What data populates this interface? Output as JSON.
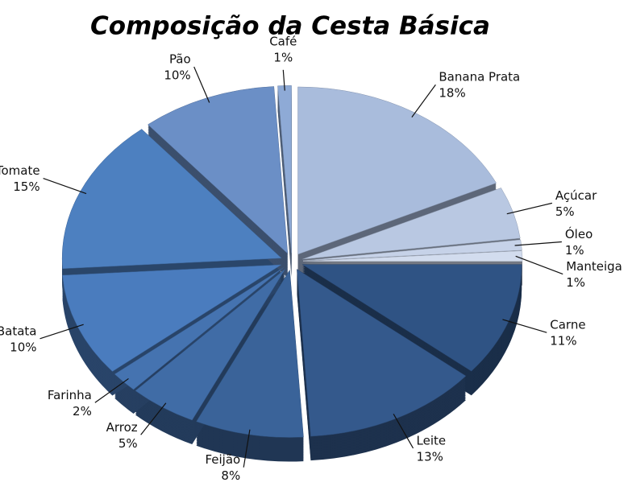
{
  "chart_data": {
    "type": "pie",
    "title": "Composição da Cesta Básica",
    "categories": [
      "Banana Prata",
      "Açúcar",
      "Óleo",
      "Manteiga",
      "Carne",
      "Leite",
      "Feijão",
      "Arroz",
      "Farinha",
      "Batata",
      "Tomate",
      "Pão",
      "Café"
    ],
    "values": [
      18,
      5,
      1,
      1,
      11,
      13,
      8,
      5,
      2,
      10,
      15,
      10,
      1
    ],
    "value_labels": [
      "18%",
      "5%",
      "1%",
      "1%",
      "11%",
      "13%",
      "8%",
      "5%",
      "2%",
      "10%",
      "15%",
      "10%",
      "1%"
    ],
    "colors": [
      "#a9bcdc",
      "#b9c8e2",
      "#c6d2e8",
      "#d2dcee",
      "#2f5384",
      "#34598c",
      "#3a6399",
      "#406ca6",
      "#4573b0",
      "#4a7cbe",
      "#4d80c0",
      "#6b8fc6",
      "#8eaad6"
    ]
  }
}
